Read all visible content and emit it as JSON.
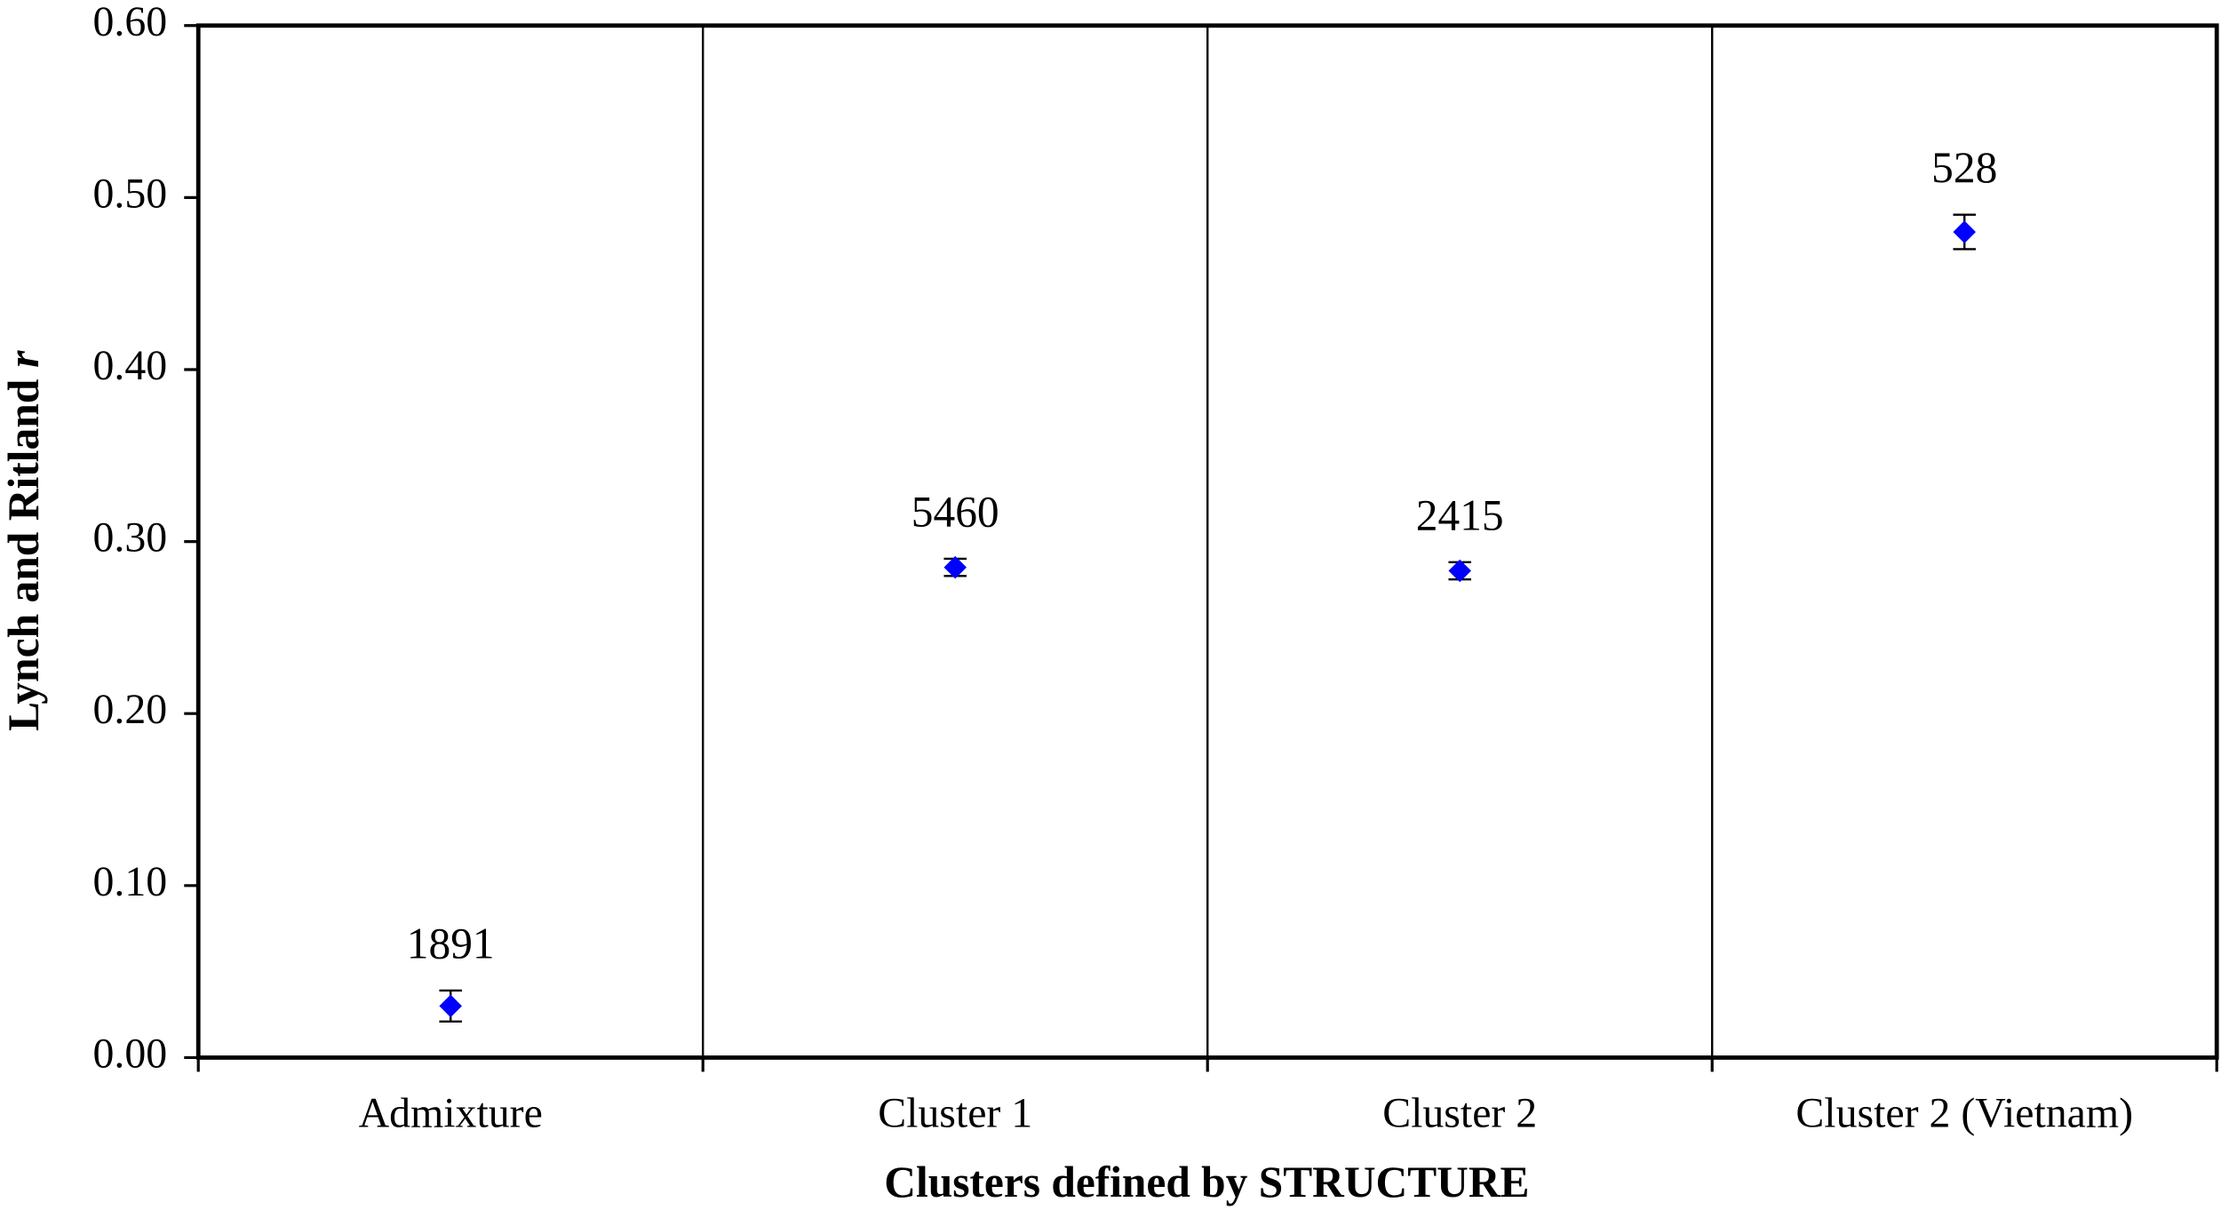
{
  "chart_data": {
    "type": "scatter",
    "xlabel": "Clusters defined by STRUCTURE",
    "ylabel": [
      "Lynch and Ritland",
      "r"
    ],
    "categories": [
      "Admixture",
      "Cluster 1",
      "Cluster 2",
      "Cluster 2 (Vietnam)"
    ],
    "values": [
      0.03,
      0.285,
      0.283,
      0.48
    ],
    "errors": [
      0.009,
      0.005,
      0.005,
      0.01
    ],
    "sample_sizes": [
      1891,
      5460,
      2415,
      528
    ],
    "color": "#0000ff",
    "ylim": [
      0,
      0.6
    ],
    "yticks": [
      {
        "value": 0,
        "label": "0.00"
      },
      {
        "value": 0.1,
        "label": "0.10"
      },
      {
        "value": 0.2,
        "label": "0.20"
      },
      {
        "value": 0.3,
        "label": "0.30"
      },
      {
        "value": 0.4,
        "label": "0.40"
      },
      {
        "value": 0.5,
        "label": "0.50"
      },
      {
        "value": 0.6,
        "label": "0.60"
      }
    ],
    "category_separators": true
  }
}
